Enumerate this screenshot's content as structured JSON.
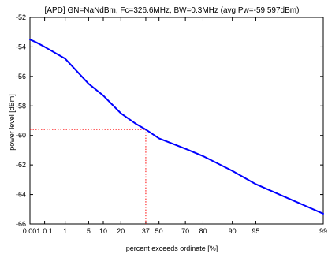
{
  "chart_data": {
    "type": "line",
    "title": "[APD] GN=NaNdBm, Fc=326.6MHz, BW=0.3MHz (avg.Pw=-59.597dBm)",
    "xlabel": "percent exceeds ordinate [%]",
    "ylabel": "power level [dBm]",
    "ylim": [
      -66,
      -52
    ],
    "yticks": [
      -52,
      -54,
      -56,
      -58,
      -60,
      -62,
      -64,
      -66
    ],
    "ytick_labels": [
      "-52",
      "-54",
      "-56",
      "-58",
      "-60",
      "-62",
      "-64",
      "-66"
    ],
    "xtick_labels": [
      "0.001",
      "0.1",
      "1",
      "5",
      "10",
      "20",
      "37",
      "50",
      "70",
      "80",
      "90",
      "95",
      "99"
    ],
    "xscale": "probability (Rayleigh-style)",
    "grid": false,
    "series": [
      {
        "color": "#0000ff",
        "x": [
          0.001,
          0.01,
          0.1,
          1,
          5,
          10,
          20,
          30,
          37,
          50,
          70,
          80,
          90,
          95,
          99
        ],
        "y": [
          -53.5,
          -53.7,
          -54.0,
          -54.8,
          -56.5,
          -57.3,
          -58.5,
          -59.2,
          -59.6,
          -60.2,
          -60.9,
          -61.4,
          -62.4,
          -63.3,
          -65.3
        ]
      }
    ],
    "reference_lines": [
      {
        "color": "#ff0000",
        "style": "dotted",
        "x": 37,
        "y": -59.597
      }
    ]
  }
}
